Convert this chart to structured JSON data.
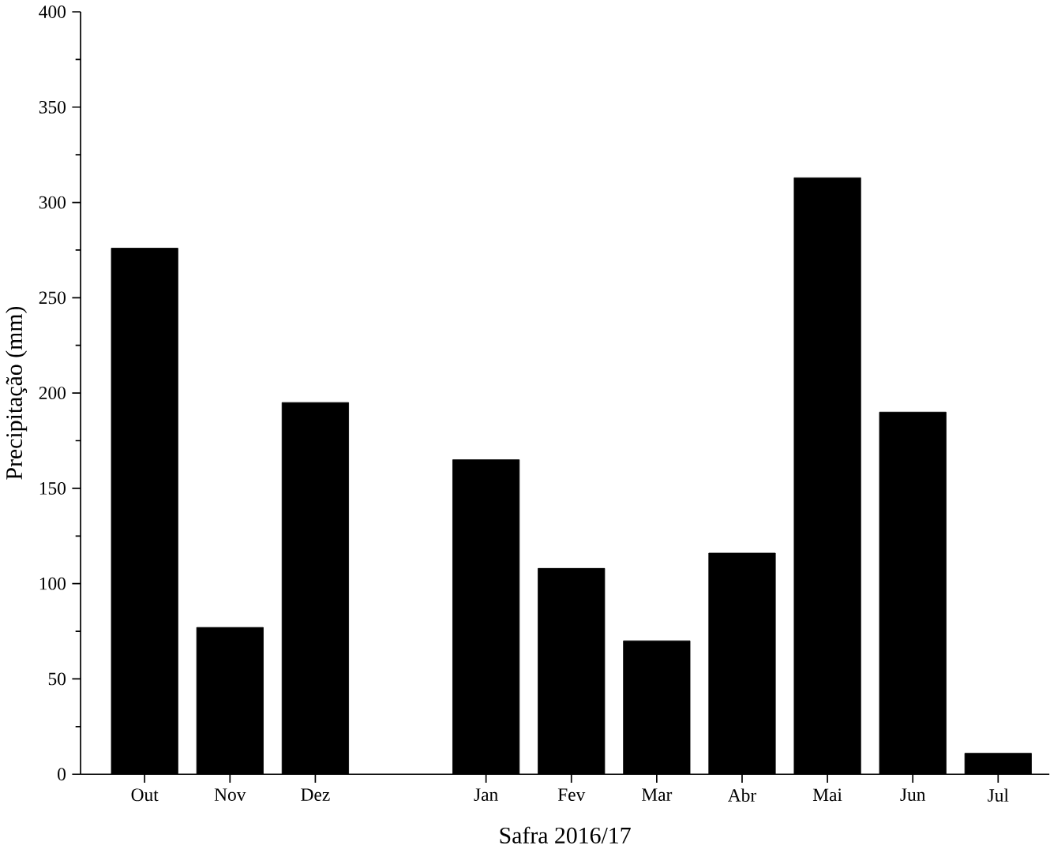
{
  "chart_data": {
    "type": "bar",
    "xlabel": "Safra 2016/17",
    "ylabel": "Precipitação (mm)",
    "categories": [
      "Out",
      "Nov",
      "Dez",
      null,
      "Jan",
      "Fev",
      "Mar",
      "Abr",
      "Mai",
      "Jun",
      "Jul"
    ],
    "values": [
      276,
      77,
      195,
      null,
      165,
      108,
      70,
      116,
      313,
      190,
      11
    ],
    "color": "#000000",
    "ylim": [
      0,
      400
    ],
    "yticks": [
      0,
      50,
      100,
      150,
      200,
      250,
      300,
      350,
      400
    ]
  }
}
